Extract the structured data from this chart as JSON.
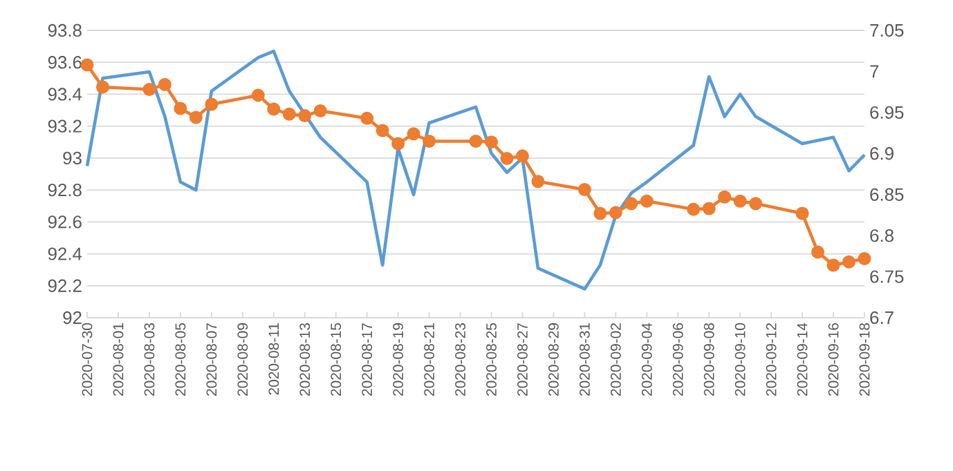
{
  "chart_data": {
    "type": "line",
    "xlim": [
      "2020-07-30",
      "2020-09-18"
    ],
    "xticks": [
      "2020-07-30",
      "2020-08-01",
      "2020-08-03",
      "2020-08-05",
      "2020-08-07",
      "2020-08-09",
      "2020-08-11",
      "2020-08-13",
      "2020-08-15",
      "2020-08-17",
      "2020-08-19",
      "2020-08-21",
      "2020-08-23",
      "2020-08-25",
      "2020-08-27",
      "2020-08-29",
      "2020-08-31",
      "2020-09-02",
      "2020-09-04",
      "2020-09-06",
      "2020-09-08",
      "2020-09-10",
      "2020-09-12",
      "2020-09-14",
      "2020-09-16",
      "2020-09-18"
    ],
    "ylim": [
      92,
      93.8
    ],
    "yticks": [
      92,
      92.2,
      92.4,
      92.6,
      92.8,
      93,
      93.2,
      93.4,
      93.6,
      93.8
    ],
    "y2lim": [
      6.7,
      7.05
    ],
    "y2ticks": [
      6.7,
      6.75,
      6.8,
      6.85,
      6.9,
      6.95,
      7,
      7.05
    ],
    "grid": "y",
    "legend": false,
    "line_style": "solid",
    "series": [
      {
        "color": "#5b9bd5",
        "marker": "none",
        "x": [
          "2020-07-30",
          "2020-07-31",
          "2020-08-03",
          "2020-08-04",
          "2020-08-05",
          "2020-08-06",
          "2020-08-07",
          "2020-08-10",
          "2020-08-11",
          "2020-08-12",
          "2020-08-14",
          "2020-08-17",
          "2020-08-18",
          "2020-08-19",
          "2020-08-20",
          "2020-08-21",
          "2020-08-24",
          "2020-08-25",
          "2020-08-26",
          "2020-08-27",
          "2020-08-28",
          "2020-08-31",
          "2020-09-01",
          "2020-09-02",
          "2020-09-03",
          "2020-09-04",
          "2020-09-07",
          "2020-09-08",
          "2020-09-09",
          "2020-09-10",
          "2020-09-11",
          "2020-09-14",
          "2020-09-16",
          "2020-09-17",
          "2020-09-18"
        ],
        "values": [
          92.95,
          93.5,
          93.54,
          93.26,
          92.85,
          92.8,
          93.42,
          93.63,
          93.67,
          93.42,
          93.13,
          92.85,
          92.33,
          93.06,
          92.77,
          93.22,
          93.32,
          93.03,
          92.91,
          93.0,
          92.31,
          92.18,
          92.33,
          92.64,
          92.78,
          92.85,
          93.08,
          93.51,
          93.26,
          93.4,
          93.26,
          93.09,
          93.13,
          92.92,
          93.02
        ]
      },
      {
        "color": "#ed7d31",
        "marker": "circle",
        "axis": "y2",
        "x": [
          "2020-07-30",
          "2020-07-31",
          "2020-08-03",
          "2020-08-04",
          "2020-08-05",
          "2020-08-06",
          "2020-08-07",
          "2020-08-10",
          "2020-08-11",
          "2020-08-12",
          "2020-08-13",
          "2020-08-14",
          "2020-08-17",
          "2020-08-18",
          "2020-08-19",
          "2020-08-20",
          "2020-08-21",
          "2020-08-24",
          "2020-08-25",
          "2020-08-26",
          "2020-08-27",
          "2020-08-28",
          "2020-08-31",
          "2020-09-01",
          "2020-09-02",
          "2020-09-03",
          "2020-09-04",
          "2020-09-07",
          "2020-09-08",
          "2020-09-09",
          "2020-09-10",
          "2020-09-11",
          "2020-09-14",
          "2020-09-15",
          "2020-09-16",
          "2020-09-17",
          "2020-09-18"
        ],
        "values": [
          7.008,
          6.981,
          6.978,
          6.984,
          6.955,
          6.944,
          6.96,
          6.971,
          6.954,
          6.948,
          6.946,
          6.952,
          6.943,
          6.928,
          6.912,
          6.924,
          6.915,
          6.915,
          6.914,
          6.894,
          6.897,
          6.866,
          6.856,
          6.827,
          6.828,
          6.839,
          6.842,
          6.832,
          6.833,
          6.847,
          6.842,
          6.839,
          6.827,
          6.78,
          6.764,
          6.768,
          6.772
        ]
      }
    ]
  }
}
